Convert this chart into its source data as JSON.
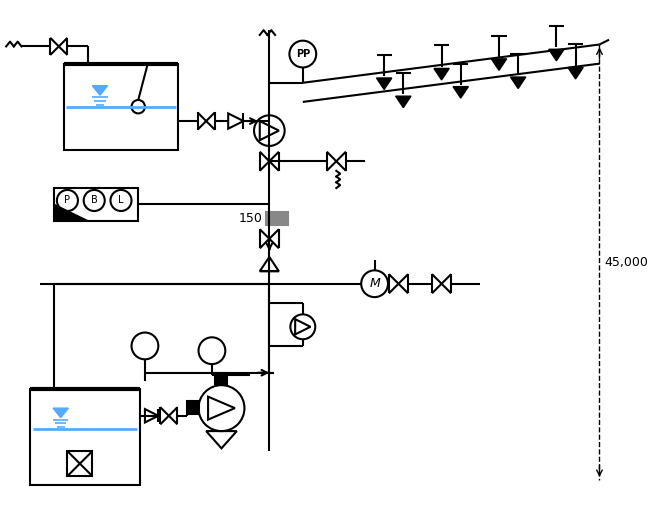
{
  "bg": "#ffffff",
  "lc": "#000000",
  "bc": "#55aaff",
  "gc": "#888888",
  "dim_text": "45,000",
  "label_150": "150",
  "label_PP": "PP",
  "label_M": "M"
}
